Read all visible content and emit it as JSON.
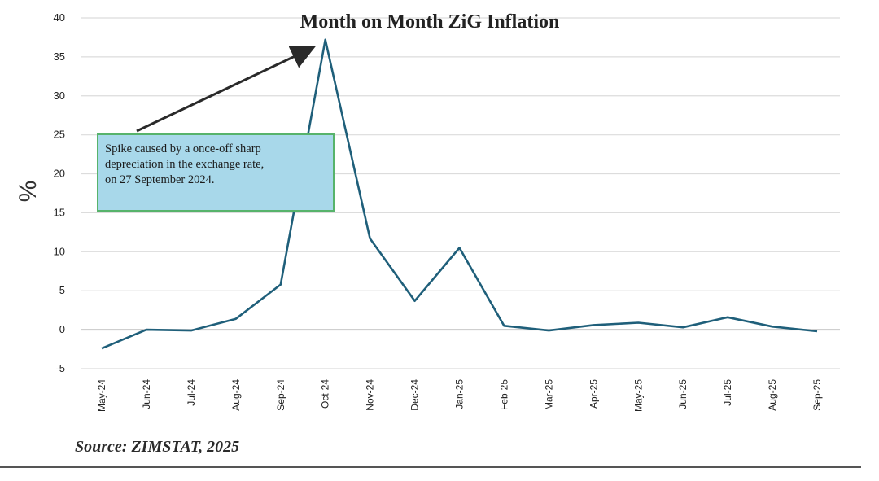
{
  "chart_data": {
    "type": "line",
    "title": "Month on Month ZiG Inflation",
    "ylabel": "%",
    "xlabel": "",
    "categories": [
      "May-24",
      "Jun-24",
      "Jul-24",
      "Aug-24",
      "Sep-24",
      "Oct-24",
      "Nov-24",
      "Dec-24",
      "Jan-25",
      "Feb-25",
      "Mar-25",
      "Apr-25",
      "May-25",
      "Jun-25",
      "Jul-25",
      "Aug-25",
      "Sep-25"
    ],
    "values": [
      -2.4,
      0.0,
      -0.1,
      1.4,
      5.8,
      37.2,
      11.7,
      3.7,
      10.5,
      0.5,
      -0.1,
      0.6,
      0.9,
      0.3,
      1.6,
      0.4,
      -0.2
    ],
    "ylim": [
      -5,
      40
    ],
    "yticks": [
      -5,
      0,
      5,
      10,
      15,
      20,
      25,
      30,
      35,
      40
    ],
    "grid": true,
    "line_color": "#1f5f7a",
    "annotation": {
      "lines": [
        "Spike caused by a once-off sharp",
        "depreciation in the exchange rate,",
        "on 27 September 2024."
      ],
      "arrow_target": "Oct-24"
    }
  },
  "source": "Source: ZIMSTAT, 2025"
}
